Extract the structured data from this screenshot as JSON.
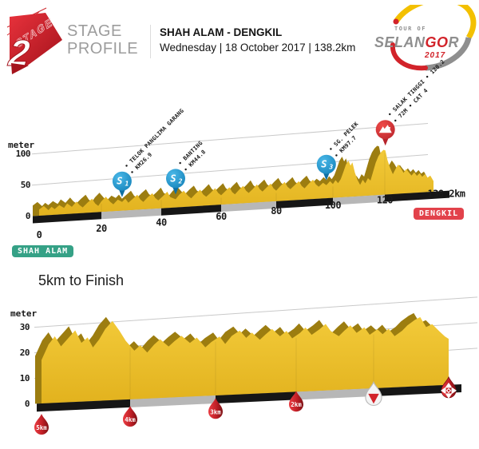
{
  "header": {
    "stage_badge": {
      "word": "STAGE",
      "number": "2"
    },
    "logo_lines": [
      "STAGE",
      "PROFILE"
    ],
    "route": "SHAH ALAM - DENGKIL",
    "meta": "Wednesday | 18 October 2017 | 138.2km",
    "event_logo": {
      "top": "TOUR OF",
      "name_gray1": "SELAN",
      "name_red": "GO",
      "name_gray2": "R",
      "year": "2017"
    }
  },
  "colors": {
    "gold": "#ecc32d",
    "gold_dark": "#9c7d10",
    "base_black": "#161616",
    "base_gray": "#b7b7b7",
    "grid": "#c9c9c9",
    "sprint_blue": "#1796d2",
    "climb_red": "#d93a3c",
    "badge_start": "#35a186",
    "badge_finish": "#e2424b",
    "droplet_red": "#c01f26",
    "accent_red": "#d2232a",
    "logo_gray": "#9d9d9d",
    "logo_yellow": "#f3c000"
  },
  "chart_data": [
    {
      "type": "area",
      "title": "SHAH ALAM - DENGKIL",
      "ylabel": "meter",
      "yticks": [
        100,
        50,
        0
      ],
      "xticks": [
        0,
        20,
        40,
        60,
        80,
        100,
        120
      ],
      "x_end_label": "138.2km",
      "xlim": [
        0,
        138.2
      ],
      "ylim": [
        0,
        150
      ],
      "start_label": "SHAH ALAM",
      "finish_label": "DENGKIL",
      "km": [
        0,
        1.5,
        3,
        4,
        5,
        6.5,
        8,
        9,
        10.5,
        12,
        13,
        14,
        15.5,
        17,
        18,
        19,
        20,
        21.5,
        23,
        24,
        25.5,
        26.9,
        28,
        29,
        30.5,
        32,
        33,
        34,
        35.5,
        37,
        38,
        39,
        40.5,
        42,
        43,
        44.8,
        46,
        47.5,
        49,
        50,
        51.5,
        53,
        54,
        55,
        56.5,
        58,
        59,
        60,
        61.5,
        63,
        64,
        65,
        66.5,
        68,
        69,
        70,
        71.5,
        73,
        74,
        75,
        76.5,
        78,
        79,
        80,
        81.5,
        83,
        84,
        85,
        86.5,
        88,
        89,
        90,
        91.5,
        93,
        94,
        95,
        96.5,
        97.7,
        99,
        100,
        101,
        102,
        103,
        104,
        105,
        106,
        106.8,
        107.5,
        108.5,
        109.5,
        110.5,
        111.5,
        112.5,
        113.5,
        114.5,
        115.5,
        116.5,
        117.5,
        118.5,
        119.5,
        120.2,
        121,
        122,
        123,
        124,
        125,
        126,
        127,
        128,
        129,
        130,
        131,
        132,
        133,
        134,
        135,
        136,
        137,
        138.2
      ],
      "elev": [
        10,
        15,
        8,
        13,
        9,
        15,
        10,
        17,
        11,
        19,
        13,
        9,
        16,
        22,
        14,
        10,
        17,
        24,
        15,
        11,
        18,
        14,
        19,
        12,
        18,
        24,
        16,
        12,
        19,
        25,
        17,
        13,
        19,
        26,
        17,
        13,
        20,
        26,
        17,
        13,
        20,
        26,
        18,
        14,
        20,
        27,
        19,
        15,
        21,
        27,
        19,
        15,
        22,
        28,
        20,
        16,
        22,
        29,
        21,
        17,
        23,
        29,
        21,
        17,
        24,
        30,
        22,
        18,
        24,
        30,
        22,
        18,
        25,
        31,
        23,
        19,
        25,
        21,
        27,
        22,
        28,
        23,
        29,
        40,
        52,
        58,
        50,
        55,
        38,
        26,
        18,
        26,
        20,
        28,
        24,
        38,
        52,
        62,
        68,
        72,
        71,
        55,
        42,
        32,
        40,
        47,
        41,
        33,
        39,
        33,
        28,
        33,
        27,
        31,
        25,
        29,
        23,
        26,
        17
      ],
      "markers": [
        {
          "type": "sprint",
          "symbol": "S",
          "number": "1",
          "km": 26.9,
          "line1": "• TELOK PANGLIMA GARANG",
          "line2": "• KM26.9"
        },
        {
          "type": "sprint",
          "symbol": "S",
          "number": "2",
          "km": 44.8,
          "line1": "• BANTING",
          "line2": "• KM44.8"
        },
        {
          "type": "sprint",
          "symbol": "S",
          "number": "3",
          "km": 97.7,
          "line1": "• SG. PELEK",
          "line2": "• KM97.7"
        },
        {
          "type": "climb",
          "number": "1",
          "km": 120.2,
          "line1": "• SALAK TINGGI • 120.2",
          "line2": "• 72M • CAT 4"
        }
      ]
    },
    {
      "type": "area",
      "title": "5km to Finish",
      "ylabel": "meter",
      "yticks": [
        30,
        20,
        10,
        0
      ],
      "xticks": [],
      "xlim": [
        5,
        0
      ],
      "ylim": [
        0,
        35
      ],
      "km": [
        5,
        4.92,
        4.85,
        4.78,
        4.7,
        4.62,
        4.55,
        4.48,
        4.42,
        4.35,
        4.28,
        4.2,
        4.12,
        4.05,
        3.95,
        3.88,
        3.8,
        3.72,
        3.65,
        3.55,
        3.48,
        3.4,
        3.3,
        3.22,
        3.12,
        3.05,
        2.95,
        2.88,
        2.8,
        2.7,
        2.62,
        2.55,
        2.45,
        2.38,
        2.3,
        2.2,
        2.12,
        2.05,
        1.95,
        1.88,
        1.8,
        1.7,
        1.62,
        1.55,
        1.45,
        1.38,
        1.3,
        1.22,
        1.12,
        1.05,
        0.95,
        0.88,
        0.8,
        0.72,
        0.62,
        0.55,
        0.45,
        0.38,
        0.3,
        0.22,
        0.12,
        0.05,
        0
      ],
      "elev": [
        17,
        23,
        26,
        22,
        25,
        28,
        23,
        25,
        21,
        24,
        28,
        31,
        27,
        23,
        19,
        21,
        18,
        21,
        23,
        20,
        22,
        24,
        21,
        23,
        19,
        21,
        23,
        20,
        23,
        25,
        22,
        24,
        21,
        23,
        25,
        22,
        24,
        21,
        23,
        25,
        22,
        24,
        26,
        23,
        21,
        23,
        25,
        22,
        24,
        21,
        23,
        21,
        23,
        20,
        22,
        24,
        26,
        27,
        23,
        24,
        21,
        19,
        18
      ],
      "markers": [
        {
          "type": "km",
          "label": "5km",
          "km": 5
        },
        {
          "type": "km",
          "label": "4km",
          "km": 4
        },
        {
          "type": "km",
          "label": "3km",
          "km": 3
        },
        {
          "type": "km",
          "label": "2km",
          "km": 2
        },
        {
          "type": "lastkm",
          "km": 1
        },
        {
          "type": "finish",
          "km": 0
        }
      ]
    }
  ]
}
